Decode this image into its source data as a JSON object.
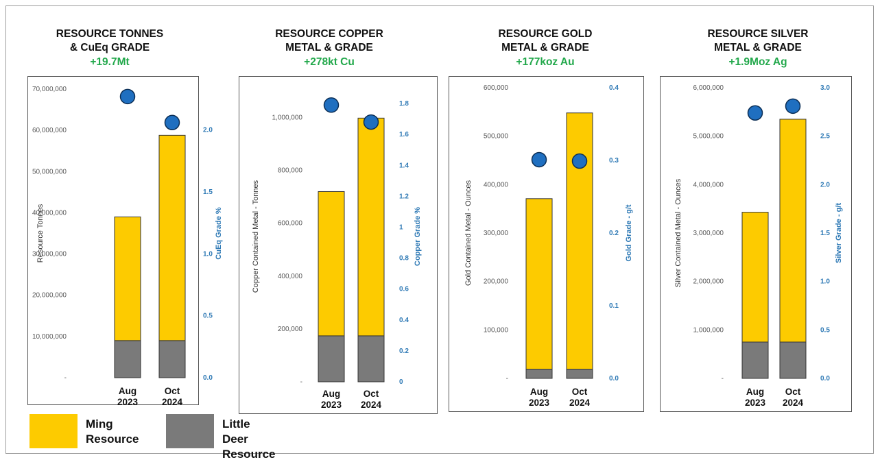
{
  "colors": {
    "ming": "#fdcb00",
    "little_deer": "#7a7a7a",
    "grade_dot": "#1f6fc0",
    "grade_axis": "#2e79b5",
    "subtitle": "#22a84b"
  },
  "legend": [
    {
      "label_line1": "Ming",
      "label_line2": "Resource",
      "color": "#fdcb00"
    },
    {
      "label_line1": "Little Deer",
      "label_line2": "Resource",
      "color": "#7a7a7a"
    }
  ],
  "chart_data": [
    {
      "type": "bar",
      "title_line1": "RESOURCE TONNES",
      "title_line2": "& CuEq GRADE",
      "subtitle": "+19.7Mt",
      "categories": [
        {
          "line1": "Aug",
          "line2": "2023"
        },
        {
          "line1": "Oct",
          "line2": "2024"
        }
      ],
      "series": [
        {
          "name": "Little Deer Resource",
          "values": [
            9000000,
            9000000
          ]
        },
        {
          "name": "Ming Resource",
          "values": [
            30000000,
            49800000
          ]
        }
      ],
      "grade": [
        2.27,
        2.06
      ],
      "ylabel": "Resource Tonnes",
      "ylabel_right": "CuEq Grade %",
      "ylim": [
        0,
        70000000
      ],
      "ylim_right": [
        0,
        2.33
      ],
      "yticks": [
        "-",
        "10,000,000",
        "20,000,000",
        "30,000,000",
        "40,000,000",
        "50,000,000",
        "60,000,000",
        "70,000,000"
      ],
      "yticks_right": [
        "0.0",
        "0.5",
        "1.0",
        "1.5",
        "2.0"
      ]
    },
    {
      "type": "bar",
      "title_line1": "RESOURCE COPPER",
      "title_line2": "METAL & GRADE",
      "subtitle": "+278kt Cu",
      "categories": [
        {
          "line1": "Aug",
          "line2": "2023"
        },
        {
          "line1": "Oct",
          "line2": "2024"
        }
      ],
      "series": [
        {
          "name": "Little Deer Resource",
          "values": [
            174000,
            174000
          ]
        },
        {
          "name": "Ming Resource",
          "values": [
            546000,
            824000
          ]
        }
      ],
      "grade": [
        1.79,
        1.68
      ],
      "ylabel": "Copper Contained Metal - Tonnes",
      "ylabel_right": "Copper Grade %",
      "ylim": [
        0,
        1100000
      ],
      "ylim_right": [
        0,
        1.88
      ],
      "yticks": [
        "-",
        "200,000",
        "400,000",
        "600,000",
        "800,000",
        "1,000,000"
      ],
      "yticks_right": [
        "0",
        "0.2",
        "0.4",
        "0.6",
        "0.8",
        "1",
        "1.2",
        "1.4",
        "1.6",
        "1.8"
      ]
    },
    {
      "type": "bar",
      "title_line1": "RESOURCE GOLD",
      "title_line2": "METAL & GRADE",
      "subtitle": "+177koz Au",
      "categories": [
        {
          "line1": "Aug",
          "line2": "2023"
        },
        {
          "line1": "Oct",
          "line2": "2024"
        }
      ],
      "series": [
        {
          "name": "Little Deer Resource",
          "values": [
            19000,
            19000
          ]
        },
        {
          "name": "Ming Resource",
          "values": [
            352000,
            529000
          ]
        }
      ],
      "grade": [
        0.301,
        0.299
      ],
      "ylabel": "Gold Contained Metal - Ounces",
      "ylabel_right": "Gold Grade - g/t",
      "ylim": [
        0,
        600000
      ],
      "ylim_right": [
        0,
        0.4
      ],
      "yticks": [
        "-",
        "100,000",
        "200,000",
        "300,000",
        "400,000",
        "500,000",
        "600,000"
      ],
      "yticks_right": [
        "0.0",
        "0.1",
        "0.2",
        "0.3",
        "0.4"
      ]
    },
    {
      "type": "bar",
      "title_line1": "RESOURCE SILVER",
      "title_line2": "METAL & GRADE",
      "subtitle": "+1.9Moz Ag",
      "categories": [
        {
          "line1": "Aug",
          "line2": "2023"
        },
        {
          "line1": "Oct",
          "line2": "2024"
        }
      ],
      "series": [
        {
          "name": "Little Deer Resource",
          "values": [
            750000,
            750000
          ]
        },
        {
          "name": "Ming Resource",
          "values": [
            2680000,
            4600000
          ]
        }
      ],
      "grade": [
        2.74,
        2.81
      ],
      "ylabel": "Silver Contained Metal - Ounces",
      "ylabel_right": "Silver Grade - g/t",
      "ylim": [
        0,
        6000000
      ],
      "ylim_right": [
        0,
        3.0
      ],
      "yticks": [
        "-",
        "1,000,000",
        "2,000,000",
        "3,000,000",
        "4,000,000",
        "5,000,000",
        "6,000,000"
      ],
      "yticks_right": [
        "0.0",
        "0.5",
        "1.0",
        "1.5",
        "2.0",
        "2.5",
        "3.0"
      ]
    }
  ]
}
